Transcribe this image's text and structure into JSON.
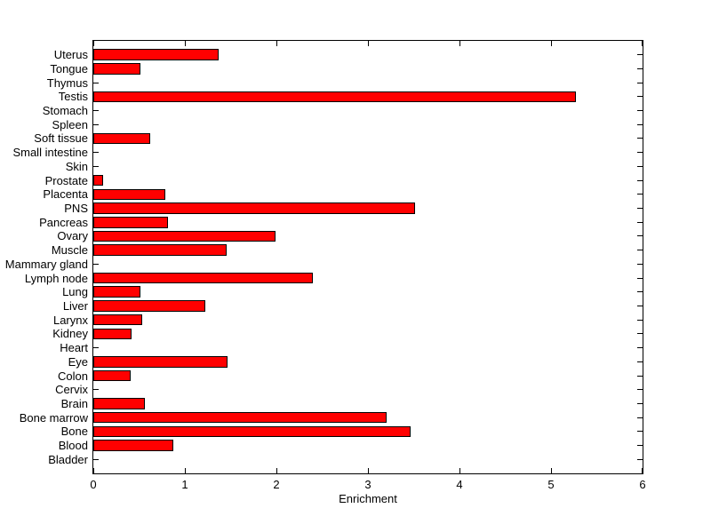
{
  "chart_data": {
    "type": "bar",
    "orientation": "horizontal",
    "title": "",
    "xlabel": "Enrichment",
    "ylabel": "",
    "xlim": [
      0,
      6
    ],
    "xticks": [
      0,
      1,
      2,
      3,
      4,
      5,
      6
    ],
    "grid": false,
    "legend": false,
    "bar_color": "#ff0000",
    "bar_edge_color": "#000000",
    "categories_top_to_bottom": [
      "Uterus",
      "Tongue",
      "Thymus",
      "Testis",
      "Stomach",
      "Spleen",
      "Soft tissue",
      "Small intestine",
      "Skin",
      "Prostate",
      "Placenta",
      "PNS",
      "Pancreas",
      "Ovary",
      "Muscle",
      "Mammary gland",
      "Lymph node",
      "Lung",
      "Liver",
      "Larynx",
      "Kidney",
      "Heart",
      "Eye",
      "Colon",
      "Cervix",
      "Brain",
      "Bone marrow",
      "Bone",
      "Blood",
      "Bladder"
    ],
    "values": [
      1.37,
      0.51,
      0,
      5.27,
      0,
      0,
      0.62,
      0,
      0,
      0.11,
      0.79,
      3.51,
      0.82,
      1.99,
      1.46,
      0,
      2.4,
      0.51,
      1.22,
      0.53,
      0.42,
      0,
      1.47,
      0.41,
      0,
      0.56,
      3.2,
      3.47,
      0.87,
      0
    ]
  }
}
